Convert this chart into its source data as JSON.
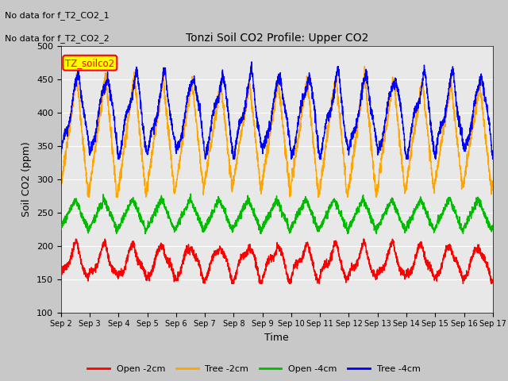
{
  "title": "Tonzi Soil CO2 Profile: Upper CO2",
  "xlabel": "Time",
  "ylabel": "Soil CO2 (ppm)",
  "ylim": [
    100,
    500
  ],
  "yticks": [
    100,
    150,
    200,
    250,
    300,
    350,
    400,
    450,
    500
  ],
  "xtick_labels": [
    "Sep 2",
    "Sep 3",
    "Sep 4",
    "Sep 5",
    "Sep 6",
    "Sep 7",
    "Sep 8",
    "Sep 9",
    "Sep 10",
    "Sep 11",
    "Sep 12",
    "Sep 13",
    "Sep 14",
    "Sep 15",
    "Sep 16",
    "Sep 17"
  ],
  "plot_bg_color": "#e8e8e8",
  "fig_bg_color": "#c8c8c8",
  "legend_entries": [
    "Open -2cm",
    "Tree -2cm",
    "Open -4cm",
    "Tree -4cm"
  ],
  "legend_colors": [
    "#ff0000",
    "#ffa500",
    "#00bb00",
    "#0000ff"
  ],
  "annotations": [
    "No data for f_T2_CO2_1",
    "No data for f_T2_CO2_2"
  ],
  "label_box_text": "TZ_soilco2",
  "label_box_color": "#ffff00",
  "label_box_border": "#ff0000",
  "orange_min": 278,
  "orange_max": 450,
  "orange_noise": 5,
  "blue_min": 335,
  "blue_max": 460,
  "blue_noise": 4,
  "green_min": 223,
  "green_max": 270,
  "green_noise": 3,
  "red_min": 148,
  "red_max": 202,
  "red_noise": 3
}
